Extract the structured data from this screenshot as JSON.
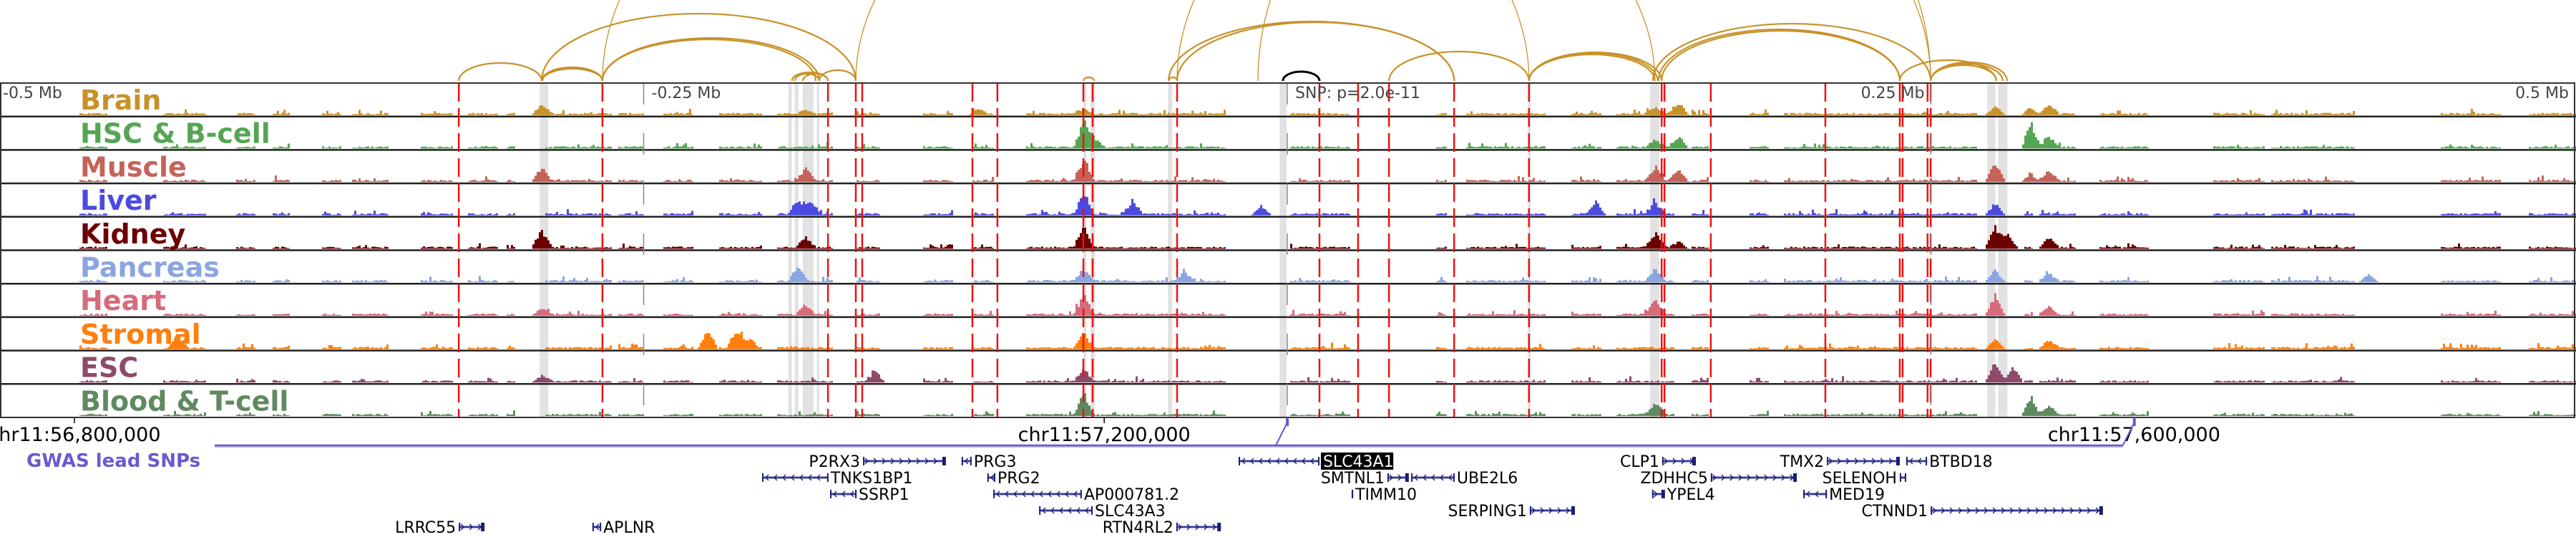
{
  "colors": {
    "arc": "#c8922a",
    "snp_arc": "#000000",
    "highlight_line": "#ee1111",
    "band": "#e2e2e2",
    "gwas": "#6a5acd",
    "gene": "#1c1c78",
    "gene_line": "#5a5aa8"
  },
  "axis": {
    "range_kb": [
      -500,
      500
    ],
    "ticks": [
      {
        "label": "-0.5 Mb",
        "kb": -500
      },
      {
        "label": "-0.25 Mb",
        "kb": -250
      },
      {
        "label": "SNP: p=2.0e-11",
        "kb": 0
      },
      {
        "label": "0.25 Mb",
        "kb": 250
      },
      {
        "label": "0.5 Mb",
        "kb": 500
      }
    ],
    "chr_ticks": [
      {
        "label": "chr11:56,800,000",
        "kb": -471.1
      },
      {
        "label": "chr11:57,200,000",
        "kb": -71.1
      },
      {
        "label": "chr11:57,600,000",
        "kb": 328.9
      }
    ]
  },
  "tracks": [
    {
      "name": "Brain",
      "color": "#c8922a",
      "peaks": [
        [
          -289.6,
          0.45
        ],
        [
          -187,
          0.15
        ],
        [
          -120,
          0.2
        ],
        [
          -79,
          0.2
        ],
        [
          143,
          0.25
        ],
        [
          152,
          0.55
        ],
        [
          275,
          0.4
        ],
        [
          289,
          0.25
        ],
        [
          296,
          0.4
        ]
      ]
    },
    {
      "name": "HSC & B-cell",
      "color": "#55a555",
      "peaks": [
        [
          -79,
          1.0
        ],
        [
          -75,
          0.4
        ],
        [
          143,
          0.3
        ],
        [
          152,
          0.5
        ],
        [
          289,
          0.95
        ],
        [
          296,
          0.45
        ]
      ]
    },
    {
      "name": "Muscle",
      "color": "#c5635a",
      "peaks": [
        [
          -289.6,
          0.6
        ],
        [
          -187,
          0.5
        ],
        [
          -79,
          0.9
        ],
        [
          143,
          0.6
        ],
        [
          152,
          0.5
        ],
        [
          275,
          0.8
        ],
        [
          289,
          0.3
        ],
        [
          296,
          0.4
        ]
      ]
    },
    {
      "name": "Liver",
      "color": "#4b4be0",
      "peaks": [
        [
          -190,
          0.6
        ],
        [
          -185,
          0.5
        ],
        [
          -79,
          0.9
        ],
        [
          -60,
          0.5
        ],
        [
          -10,
          0.4
        ],
        [
          120,
          0.5
        ],
        [
          143,
          0.5
        ],
        [
          275,
          0.5
        ]
      ]
    },
    {
      "name": "Kidney",
      "color": "#6b0000",
      "peaks": [
        [
          -289.6,
          0.8
        ],
        [
          -187,
          0.4
        ],
        [
          -79,
          0.9
        ],
        [
          143,
          0.6
        ],
        [
          152,
          0.3
        ],
        [
          275,
          0.9
        ],
        [
          280,
          0.6
        ],
        [
          296,
          0.4
        ]
      ]
    },
    {
      "name": "Pancreas",
      "color": "#8aa5e0",
      "peaks": [
        [
          -190,
          0.6
        ],
        [
          -79,
          0.5
        ],
        [
          -40,
          0.4
        ],
        [
          143,
          0.5
        ],
        [
          275,
          0.5
        ],
        [
          296,
          0.3
        ],
        [
          420,
          0.3
        ]
      ]
    },
    {
      "name": "Heart",
      "color": "#d66b7a",
      "peaks": [
        [
          -289.6,
          0.3
        ],
        [
          -187,
          0.4
        ],
        [
          -79,
          0.8
        ],
        [
          143,
          0.6
        ],
        [
          275,
          0.8
        ],
        [
          296,
          0.3
        ]
      ]
    },
    {
      "name": "Stromal",
      "color": "#ff7f0e",
      "peaks": [
        [
          -431,
          0.5
        ],
        [
          -225,
          0.8
        ],
        [
          -214,
          0.7
        ],
        [
          -209,
          0.4
        ],
        [
          -79,
          0.6
        ],
        [
          275,
          0.4
        ],
        [
          296,
          0.3
        ]
      ]
    },
    {
      "name": "ESC",
      "color": "#8e4a6a",
      "peaks": [
        [
          -289.6,
          0.3
        ],
        [
          -160,
          0.4
        ],
        [
          -79,
          0.5
        ],
        [
          275,
          0.9
        ],
        [
          282,
          0.6
        ]
      ]
    },
    {
      "name": "Blood & T-cell",
      "color": "#5f8a5f",
      "peaks": [
        [
          -79,
          0.9
        ],
        [
          143,
          0.5
        ],
        [
          289,
          0.7
        ],
        [
          296,
          0.35
        ]
      ]
    }
  ],
  "highlight_lines_kb": [
    -321.8,
    -266,
    -178.4,
    -167.6,
    -165.1,
    -122.3,
    -112.6,
    -79.2,
    -75.6,
    -42.8,
    12.5,
    27.5,
    39.5,
    64.8,
    93.9,
    145.4,
    146.5,
    164.5,
    209,
    237.9,
    239,
    248.7,
    249.9
  ],
  "bands_kb": [
    [
      -290.4,
      -287
    ],
    [
      -193.8,
      -192.4
    ],
    [
      -191.3,
      -189.9
    ],
    [
      -188.2,
      -184
    ],
    [
      -182.7,
      -181.8
    ],
    [
      -79.2,
      -78.1
    ],
    [
      -76.4,
      -74.7
    ],
    [
      -46.4,
      -44.7
    ],
    [
      -3,
      -0.3
    ],
    [
      93.4,
      94.5
    ],
    [
      140.9,
      144.5
    ],
    [
      271.9,
      275
    ],
    [
      276.1,
      279.7
    ]
  ],
  "arcs_kb": [
    [
      -321.8,
      -289.6
    ],
    [
      -289.6,
      -266
    ],
    [
      -289.3,
      -266
    ],
    [
      -289.6,
      -167.6
    ],
    [
      -266,
      -181.8
    ],
    [
      -266,
      -183.2
    ],
    [
      -192.4,
      -178.4
    ],
    [
      -191.3,
      -181.8
    ],
    [
      -188.2,
      -178.4
    ],
    [
      -181.8,
      -167.6
    ],
    [
      -266,
      93.9
    ],
    [
      -79.2,
      -75
    ],
    [
      -46.1,
      -42.8
    ],
    [
      -46.1,
      64.8
    ],
    [
      -42.8,
      64.8
    ],
    [
      -42.8,
      249.9
    ],
    [
      39.5,
      93.9
    ],
    [
      93.9,
      143.9
    ],
    [
      93.9,
      142.8
    ],
    [
      93.9,
      145.4
    ],
    [
      -167.6,
      142.8
    ],
    [
      144.2,
      237.9
    ],
    [
      145.4,
      237.9
    ],
    [
      142,
      249.9
    ],
    [
      -11.4,
      249.9
    ],
    [
      237.9,
      275.4
    ],
    [
      249.9,
      277.9
    ],
    [
      249.9,
      279.6
    ],
    [
      249.9,
      275.4
    ]
  ],
  "snp_arc_kb": [
    -1.7,
    12.5
  ],
  "gwas": {
    "label": "GWAS lead SNPs",
    "snps_kb": [
      0,
      329
    ]
  },
  "genes": [
    {
      "name": "P2RX3",
      "start": -164.8,
      "end": -132.6,
      "strand": "+"
    },
    {
      "name": "PRG3",
      "start": -126.5,
      "end": -122.6,
      "strand": "-"
    },
    {
      "name": "TNKS1BP1",
      "start": -204,
      "end": -178.2,
      "strand": "-"
    },
    {
      "name": "PRG2",
      "start": -116.5,
      "end": -113.4,
      "strand": "-"
    },
    {
      "name": "SSRP1",
      "start": -177.6,
      "end": -167.3,
      "strand": "-"
    },
    {
      "name": "AP000781.2",
      "start": -114.2,
      "end": -79.8,
      "strand": "-"
    },
    {
      "name": "SLC43A3",
      "start": -96.4,
      "end": -75.6,
      "strand": "-"
    },
    {
      "name": "RTN4RL2",
      "start": -43.1,
      "end": -25.8,
      "strand": "+"
    },
    {
      "name": "SLC43A1",
      "start": -18.9,
      "end": 12.5,
      "strand": "-",
      "highlighted": true
    },
    {
      "name": "SMTNL1",
      "start": 38.9,
      "end": 47.2,
      "strand": "+"
    },
    {
      "name": "UBE2L6",
      "start": 48.1,
      "end": 65,
      "strand": "-"
    },
    {
      "name": "TIMM10",
      "start": 25,
      "end": 25.6,
      "strand": "-"
    },
    {
      "name": "SERPING1",
      "start": 94.2,
      "end": 111.7,
      "strand": "+"
    },
    {
      "name": "CLP1",
      "start": 145.6,
      "end": 158.7,
      "strand": "+"
    },
    {
      "name": "TMX2",
      "start": 209.6,
      "end": 237.9,
      "strand": "+"
    },
    {
      "name": "BTBD18",
      "start": 240.4,
      "end": 248.5,
      "strand": "-"
    },
    {
      "name": "ZDHHC5",
      "start": 164.5,
      "end": 197.9,
      "strand": "+"
    },
    {
      "name": "SELENOH",
      "start": 237.9,
      "end": 240.4,
      "strand": "-"
    },
    {
      "name": "YPEL4",
      "start": 141.7,
      "end": 146.7,
      "strand": "+"
    },
    {
      "name": "MED19",
      "start": 200.4,
      "end": 209.6,
      "strand": "-"
    },
    {
      "name": "CTNND1",
      "start": 249.9,
      "end": 316.8,
      "strand": "+"
    },
    {
      "name": "LRRC55",
      "start": -321.8,
      "end": -311.8,
      "strand": "+"
    },
    {
      "name": "APLNR",
      "start": -269.9,
      "end": -266.5,
      "strand": "-"
    }
  ]
}
